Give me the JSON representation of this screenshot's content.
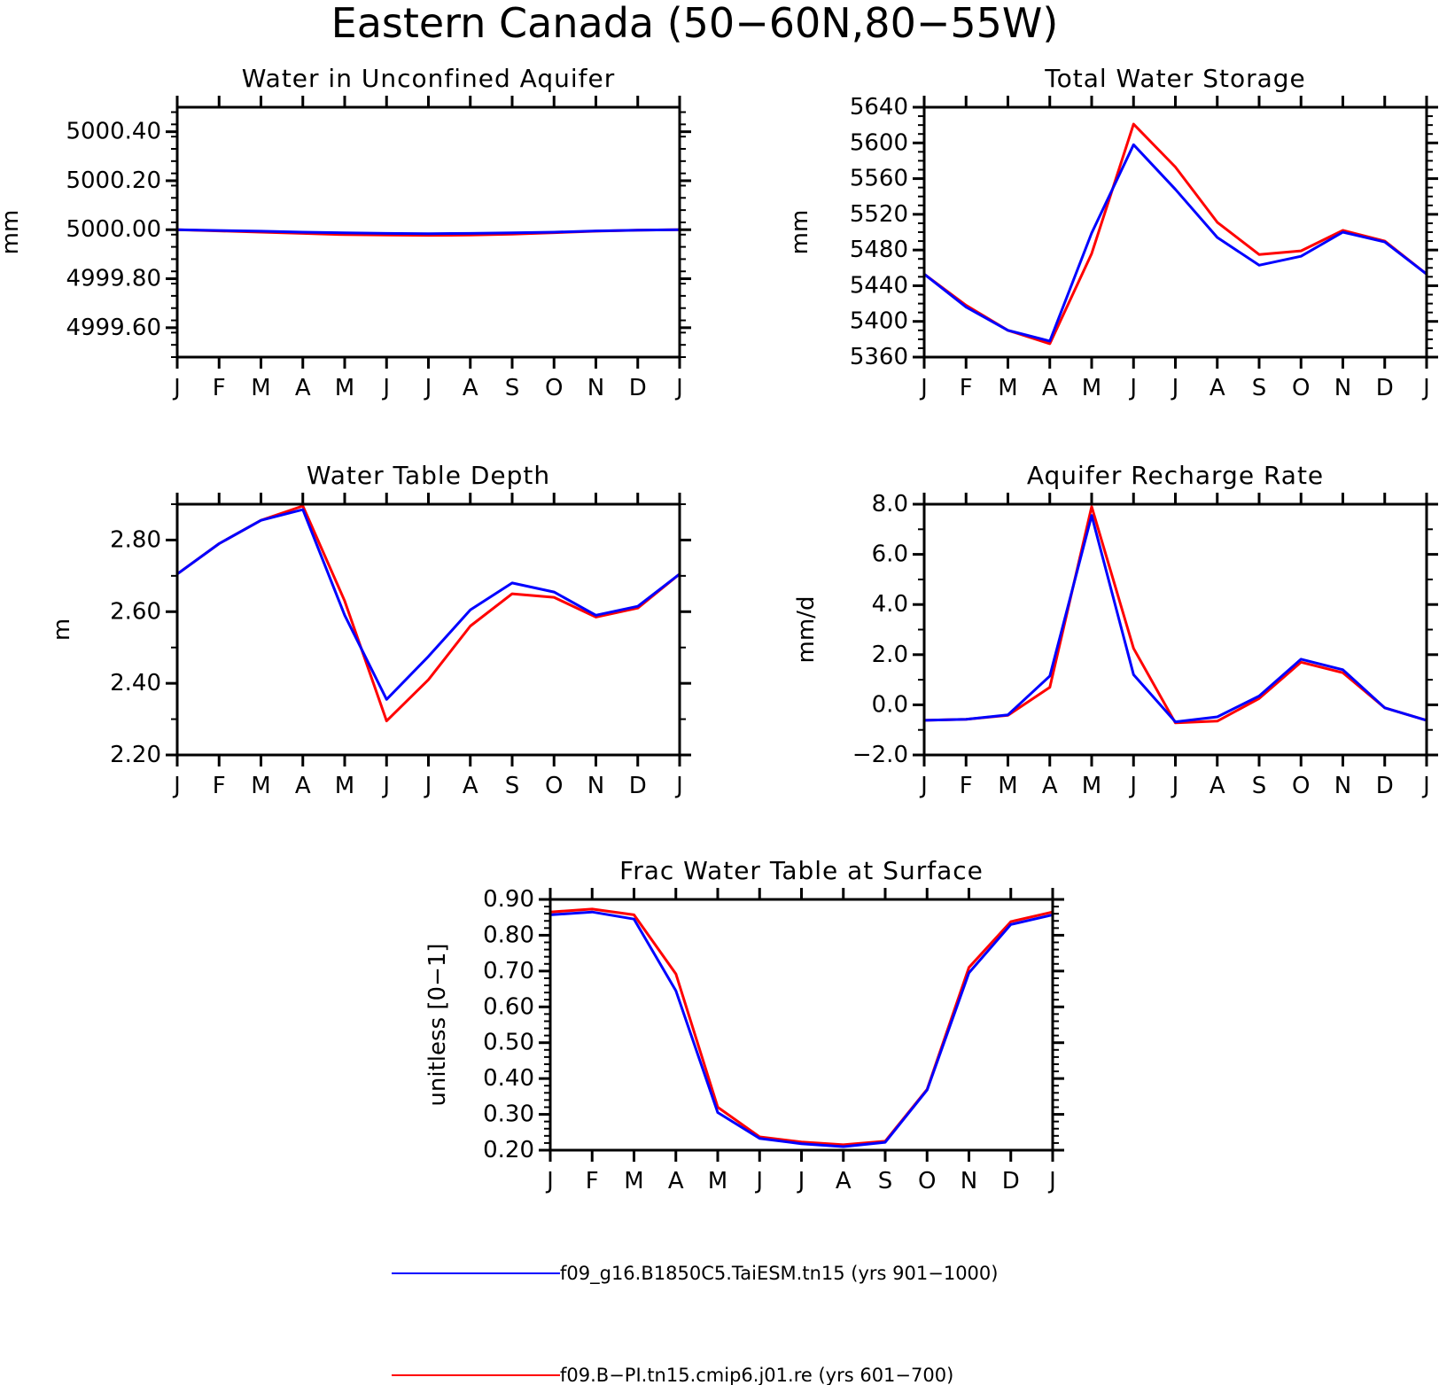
{
  "figure_title": "Eastern Canada (50−60N,80−55W)",
  "legend": [
    {
      "label": "f09_g16.B1850C5.TaiESM.tn15 (yrs 901−1000)",
      "color": "#0000ff"
    },
    {
      "label": "f09.B−PI.tn15.cmip6.j01.re (yrs 601−700)",
      "color": "#ff0000"
    }
  ],
  "chart_data": [
    {
      "type": "line",
      "title": "Water in Unconfined Aquifer",
      "ylabel": "mm",
      "categories": [
        "J",
        "F",
        "M",
        "A",
        "M",
        "J",
        "J",
        "A",
        "S",
        "O",
        "N",
        "D",
        "J"
      ],
      "ylim": [
        4999.48,
        5000.5
      ],
      "yticks": [
        4999.6,
        4999.8,
        5000.0,
        5000.2,
        5000.4
      ],
      "ytick_labels": [
        "4999.60",
        "4999.80",
        "5000.00",
        "5000.20",
        "5000.40"
      ],
      "yminor": 0.05,
      "series": [
        {
          "color": "#ff0000",
          "values": [
            5000.0,
            4999.995,
            4999.99,
            4999.985,
            4999.98,
            4999.978,
            4999.977,
            4999.978,
            4999.982,
            4999.988,
            4999.994,
            4999.998,
            5000.0
          ]
        },
        {
          "color": "#0000ff",
          "values": [
            5000.0,
            4999.997,
            4999.994,
            4999.99,
            4999.987,
            4999.985,
            4999.984,
            4999.985,
            4999.987,
            4999.99,
            4999.995,
            4999.998,
            5000.0
          ]
        }
      ]
    },
    {
      "type": "line",
      "title": "Total Water Storage",
      "ylabel": "mm",
      "categories": [
        "J",
        "F",
        "M",
        "A",
        "M",
        "J",
        "J",
        "A",
        "S",
        "O",
        "N",
        "D",
        "J"
      ],
      "ylim": [
        5360,
        5640
      ],
      "yticks": [
        5360,
        5400,
        5440,
        5480,
        5520,
        5560,
        5600,
        5640
      ],
      "ytick_labels": [
        "5360",
        "5400",
        "5440",
        "5480",
        "5520",
        "5560",
        "5600",
        "5640"
      ],
      "yminor": 10,
      "series": [
        {
          "color": "#ff0000",
          "values": [
            5453,
            5418,
            5390,
            5375,
            5476,
            5621,
            5573,
            5511,
            5475,
            5479,
            5502,
            5490,
            5453
          ]
        },
        {
          "color": "#0000ff",
          "values": [
            5453,
            5416,
            5390,
            5378,
            5499,
            5598,
            5548,
            5494,
            5463,
            5473,
            5500,
            5489,
            5453
          ]
        }
      ]
    },
    {
      "type": "line",
      "title": "Water Table Depth",
      "ylabel": "m",
      "categories": [
        "J",
        "F",
        "M",
        "A",
        "M",
        "J",
        "J",
        "A",
        "S",
        "O",
        "N",
        "D",
        "J"
      ],
      "ylim": [
        2.2,
        2.9
      ],
      "yticks": [
        2.2,
        2.4,
        2.6,
        2.8
      ],
      "ytick_labels": [
        "2.20",
        "2.40",
        "2.60",
        "2.80"
      ],
      "yminor": 0.1,
      "series": [
        {
          "color": "#ff0000",
          "values": [
            2.705,
            2.79,
            2.855,
            2.895,
            2.63,
            2.295,
            2.41,
            2.56,
            2.65,
            2.64,
            2.585,
            2.61,
            2.705
          ]
        },
        {
          "color": "#0000ff",
          "values": [
            2.705,
            2.79,
            2.855,
            2.885,
            2.59,
            2.355,
            2.475,
            2.605,
            2.68,
            2.655,
            2.59,
            2.615,
            2.705
          ]
        }
      ]
    },
    {
      "type": "line",
      "title": "Aquifer Recharge Rate",
      "ylabel": "mm/d",
      "categories": [
        "J",
        "F",
        "M",
        "A",
        "M",
        "J",
        "J",
        "A",
        "S",
        "O",
        "N",
        "D",
        "J"
      ],
      "ylim": [
        -2.0,
        8.0
      ],
      "yticks": [
        -2.0,
        0.0,
        2.0,
        4.0,
        6.0,
        8.0
      ],
      "ytick_labels": [
        "−2.0",
        "0.0",
        "2.0",
        "4.0",
        "6.0",
        "8.0"
      ],
      "yminor": 1.0,
      "series": [
        {
          "color": "#ff0000",
          "values": [
            -0.62,
            -0.58,
            -0.42,
            0.7,
            7.9,
            2.25,
            -0.72,
            -0.65,
            0.25,
            1.7,
            1.28,
            -0.12,
            -0.62
          ]
        },
        {
          "color": "#0000ff",
          "values": [
            -0.62,
            -0.58,
            -0.4,
            1.15,
            7.55,
            1.2,
            -0.68,
            -0.48,
            0.35,
            1.82,
            1.4,
            -0.12,
            -0.62
          ]
        }
      ]
    },
    {
      "type": "line",
      "title": "Frac Water Table at Surface",
      "ylabel": "unitless [0−1]",
      "categories": [
        "J",
        "F",
        "M",
        "A",
        "M",
        "J",
        "J",
        "A",
        "S",
        "O",
        "N",
        "D",
        "J"
      ],
      "ylim": [
        0.2,
        0.9
      ],
      "yticks": [
        0.2,
        0.3,
        0.4,
        0.5,
        0.6,
        0.7,
        0.8,
        0.9
      ],
      "ytick_labels": [
        "0.20",
        "0.30",
        "0.40",
        "0.50",
        "0.60",
        "0.70",
        "0.80",
        "0.90"
      ],
      "yminor": 0.02,
      "series": [
        {
          "color": "#ff0000",
          "values": [
            0.865,
            0.873,
            0.857,
            0.692,
            0.32,
            0.237,
            0.223,
            0.215,
            0.225,
            0.37,
            0.71,
            0.838,
            0.865
          ]
        },
        {
          "color": "#0000ff",
          "values": [
            0.857,
            0.865,
            0.845,
            0.645,
            0.305,
            0.233,
            0.218,
            0.21,
            0.222,
            0.368,
            0.695,
            0.83,
            0.857
          ]
        }
      ]
    }
  ]
}
